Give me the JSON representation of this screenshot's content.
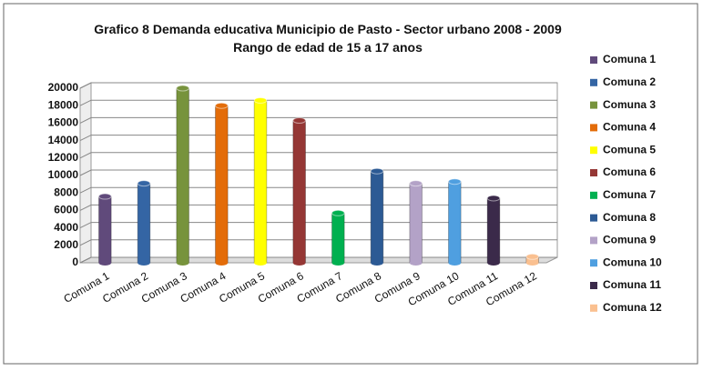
{
  "chart_data": {
    "type": "bar",
    "title": "Grafico 8 Demanda educativa Municipio de Pasto - Sector urbano 2008 - 2009 Rango de edad de 15 a 17 anos",
    "categories": [
      "Comuna 1",
      "Comuna 2",
      "Comuna 3",
      "Comuna 4",
      "Comuna 5",
      "Comuna 6",
      "Comuna 7",
      "Comuna 8",
      "Comuna 9",
      "Comuna 10",
      "Comuna 11",
      "Comuna 12"
    ],
    "values": [
      7600,
      9100,
      20000,
      18000,
      18600,
      16300,
      5700,
      10500,
      9100,
      9300,
      7400,
      700
    ],
    "colors": [
      "#604a7b",
      "#3465a4",
      "#77933c",
      "#e36c09",
      "#ffff00",
      "#953735",
      "#00b050",
      "#2c5a94",
      "#b3a2c7",
      "#4f9fe0",
      "#3b2a4a",
      "#fac090"
    ],
    "ylim": [
      0,
      20000
    ],
    "yticks": [
      0,
      2000,
      4000,
      6000,
      8000,
      10000,
      12000,
      14000,
      16000,
      18000,
      20000
    ],
    "grid": true,
    "legend": "right"
  }
}
